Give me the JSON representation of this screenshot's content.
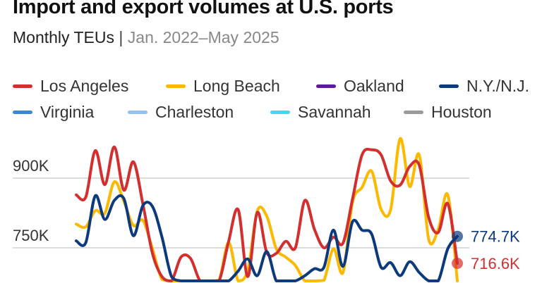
{
  "chart_data": {
    "type": "line",
    "title": "Import and export volumes at U.S. ports",
    "subtitle": "Monthly TEUs",
    "subtitle_range": "Jan. 2022–May 2025",
    "subtitle_separator": "|",
    "x_start": "2022-01",
    "x_end": "2025-05",
    "x_unit": "month",
    "yticks": [
      {
        "value": 900000,
        "label": "900K"
      },
      {
        "value": 750000,
        "label": "750K"
      }
    ],
    "grid": true,
    "legend_placement": "top",
    "legend": [
      {
        "name": "Los Angeles",
        "color": "#d42f2f"
      },
      {
        "name": "Long Beach",
        "color": "#fbb900"
      },
      {
        "name": "Oakland",
        "color": "#5b1aa0"
      },
      {
        "name": "N.Y./N.J.",
        "color": "#0c3a7c"
      },
      {
        "name": "Virginia",
        "color": "#3f86d2"
      },
      {
        "name": "Charleston",
        "color": "#93c3ec"
      },
      {
        "name": "Savannah",
        "color": "#45d8ea"
      },
      {
        "name": "Houston",
        "color": "#9a9a9a"
      }
    ],
    "series": [
      {
        "name": "Los Angeles",
        "color": "#d42f2f",
        "end_label": "716.6K",
        "values": [
          864000,
          859000,
          959000,
          886000,
          967000,
          874000,
          935000,
          844000,
          738000,
          688000,
          660000,
          730000,
          727000,
          620000,
          600000,
          650000,
          764000,
          832000,
          688000,
          826000,
          740000,
          738000,
          764000,
          750000,
          852000,
          790000,
          750000,
          773000,
          760000,
          855000,
          950000,
          961000,
          950000,
          894000,
          885000,
          925000,
          928000,
          815000,
          783000,
          845000,
          716600
        ]
      },
      {
        "name": "Long Beach",
        "color": "#fbb900",
        "values": [
          801000,
          795000,
          830000,
          824000,
          892000,
          850000,
          798000,
          809000,
          748000,
          682000,
          640000,
          620000,
          610000,
          640000,
          620000,
          680000,
          761000,
          677000,
          700000,
          829000,
          818000,
          748000,
          730000,
          712000,
          677000,
          677000,
          680000,
          748000,
          697000,
          848000,
          880000,
          915000,
          833000,
          832000,
          985000,
          882000,
          950000,
          768000,
          790000,
          864000,
          660000
        ]
      },
      {
        "name": "N.Y./N.J.",
        "color": "#0c3a7c",
        "end_label": "774.7K",
        "values": [
          765000,
          761000,
          862000,
          811000,
          852000,
          856000,
          776000,
          841000,
          839000,
          773000,
          688000,
          640000,
          620000,
          610000,
          640000,
          660000,
          676000,
          700000,
          726000,
          690000,
          742000,
          660000,
          650000,
          670000,
          690000,
          705000,
          708000,
          788000,
          710000,
          806000,
          788000,
          780000,
          708000,
          718000,
          690000,
          720000,
          697000,
          640000,
          630000,
          748000,
          774700
        ]
      }
    ]
  }
}
